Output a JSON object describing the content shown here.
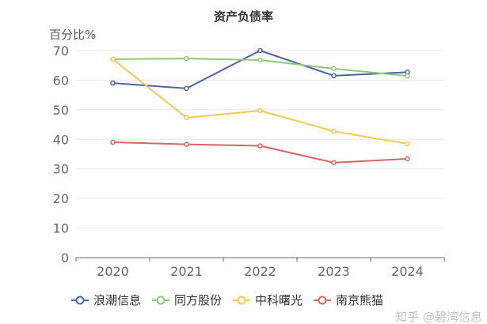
{
  "chart_data": {
    "type": "line",
    "title": "资产负债率",
    "ylabel": "百分比%",
    "xlabel": "",
    "categories": [
      "2020",
      "2021",
      "2022",
      "2023",
      "2024"
    ],
    "ylim": [
      0,
      70
    ],
    "yticks": [
      0,
      10,
      20,
      30,
      40,
      50,
      60,
      70
    ],
    "grid": true,
    "legend_position": "bottom",
    "series": [
      {
        "name": "浪潮信息",
        "color": "#4a64a8",
        "values": [
          59.0,
          57.2,
          70.0,
          61.5,
          62.7
        ]
      },
      {
        "name": "同方股份",
        "color": "#8cc878",
        "values": [
          67.1,
          67.3,
          66.8,
          63.9,
          61.4
        ]
      },
      {
        "name": "中科曙光",
        "color": "#f2c94c",
        "values": [
          67.1,
          47.3,
          49.7,
          42.7,
          38.5
        ]
      },
      {
        "name": "南京熊猫",
        "color": "#d96464",
        "values": [
          39.0,
          38.3,
          37.8,
          32.1,
          33.4
        ]
      }
    ]
  },
  "watermark": "知乎 @碧湾信息"
}
